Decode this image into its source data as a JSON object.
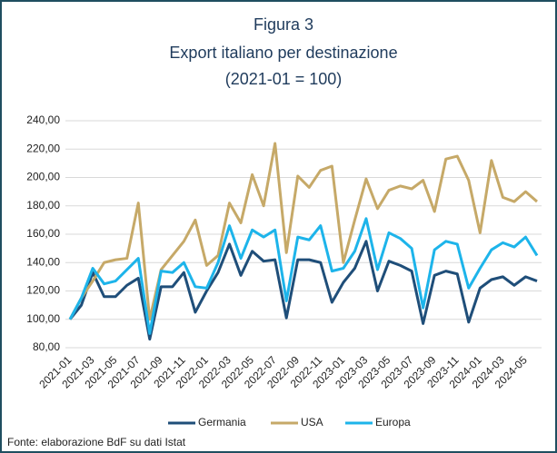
{
  "chart_data": {
    "type": "line",
    "title": [
      "Figura 3",
      "Export italiano per destinazione",
      "(2021-01  = 100)"
    ],
    "source": "Fonte: elaborazione BdF su dati Istat",
    "categories": [
      "2021-01",
      null,
      "2021-03",
      null,
      "2021-05",
      null,
      "2021-07",
      null,
      "2021-09",
      null,
      "2021-11",
      null,
      "2022-01",
      null,
      "2022-03",
      null,
      "2022-05",
      null,
      "2022-07",
      null,
      "2022-09",
      null,
      "2022-11",
      null,
      "2023-01",
      null,
      "2023-03",
      null,
      "2023-05",
      null,
      "2023-07",
      null,
      "2023-09",
      null,
      "2023-11",
      null,
      "2024-01",
      null,
      "2024-03",
      null,
      "2024-05",
      null
    ],
    "series": [
      {
        "name": "Germania",
        "color": "#1f4e79",
        "values": [
          100,
          110,
          133,
          116,
          116,
          124,
          129,
          86,
          123,
          123,
          133,
          105,
          120,
          133,
          153,
          131,
          148,
          141,
          142,
          101,
          142,
          142,
          140,
          112,
          126,
          136,
          155,
          120,
          141,
          138,
          134,
          97,
          131,
          134,
          132,
          98,
          122,
          128,
          130,
          124,
          130,
          127
        ]
      },
      {
        "name": "USA",
        "color": "#c6a968",
        "values": [
          100,
          115,
          127,
          140,
          142,
          143,
          182,
          100,
          135,
          145,
          155,
          170,
          138,
          145,
          182,
          168,
          202,
          180,
          224,
          147,
          201,
          193,
          205,
          208,
          140,
          170,
          199,
          178,
          191,
          194,
          192,
          198,
          176,
          213,
          215,
          198,
          161,
          212,
          186,
          183,
          190,
          183
        ]
      },
      {
        "name": "Europa",
        "color": "#1db4ea",
        "values": [
          100,
          115,
          136,
          125,
          127,
          135,
          143,
          90,
          134,
          133,
          140,
          123,
          122,
          140,
          166,
          143,
          163,
          158,
          163,
          113,
          158,
          156,
          166,
          134,
          136,
          148,
          171,
          135,
          161,
          157,
          150,
          108,
          149,
          155,
          153,
          122,
          136,
          149,
          154,
          151,
          158,
          145
        ]
      }
    ],
    "ylim": [
      80,
      240
    ],
    "yticks": [
      {
        "value": 80,
        "label": "80,00"
      },
      {
        "value": 100,
        "label": "100,00"
      },
      {
        "value": 120,
        "label": "120,00"
      },
      {
        "value": 140,
        "label": "140,00"
      },
      {
        "value": 160,
        "label": "160,00"
      },
      {
        "value": 180,
        "label": "180,00"
      },
      {
        "value": 200,
        "label": "200,00"
      },
      {
        "value": 220,
        "label": "220,00"
      },
      {
        "value": 240,
        "label": "240,00"
      }
    ],
    "grid": true,
    "legend": "bottom"
  }
}
